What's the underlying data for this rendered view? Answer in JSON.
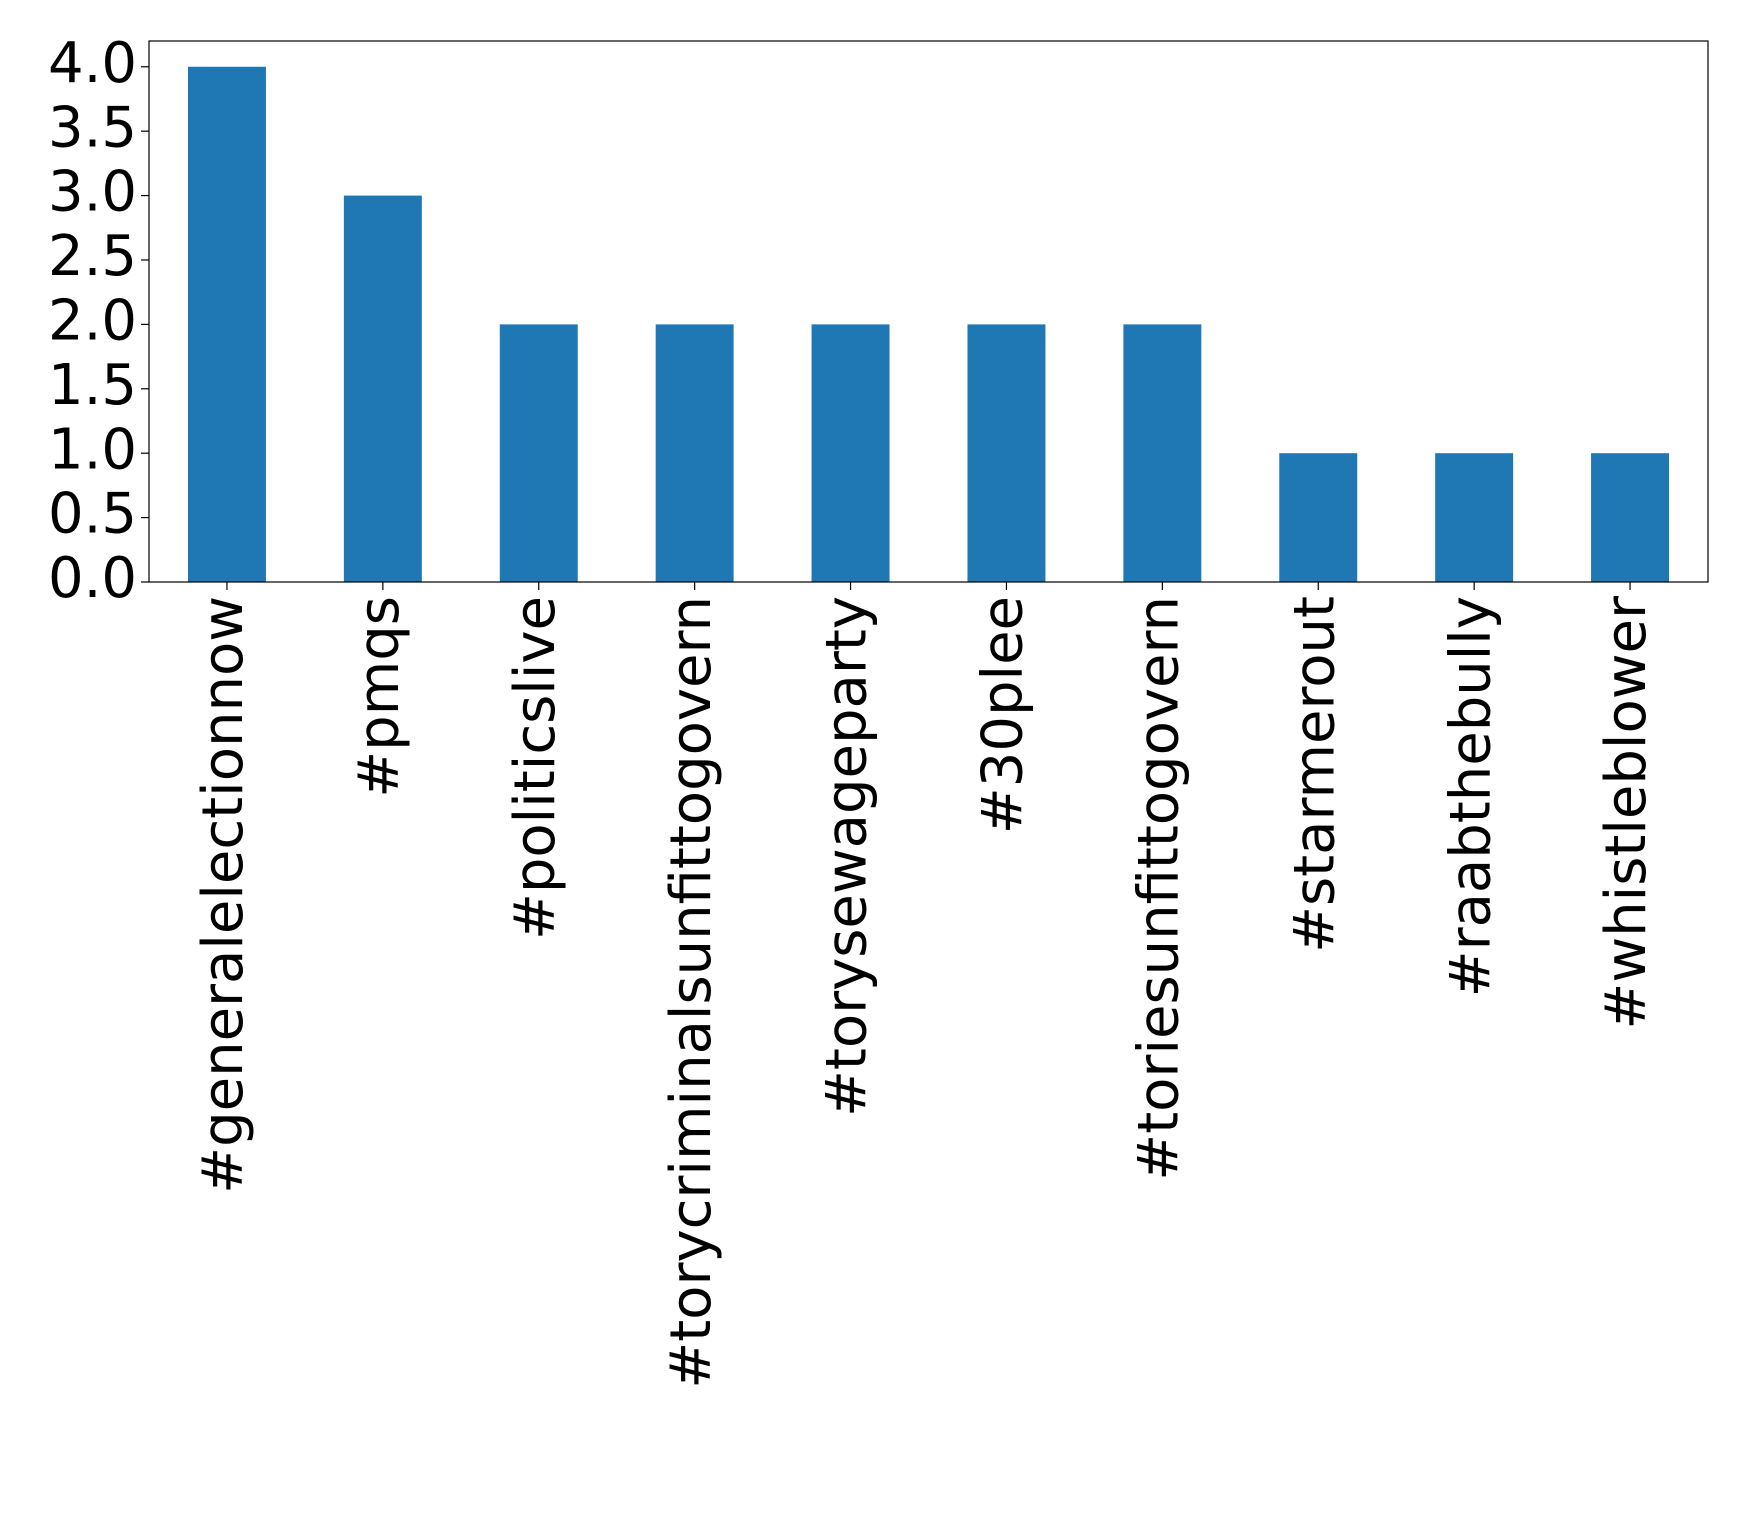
{
  "chart_data": {
    "type": "bar",
    "categories": [
      "#generalelectionnow",
      "#pmqs",
      "#politicslive",
      "#torycriminalsunfittogovern",
      "#torysewageparty",
      "#30plee",
      "#toriesunfittogovern",
      "#starmerout",
      "#raabthebully",
      "#whistleblower"
    ],
    "values": [
      4,
      3,
      2,
      2,
      2,
      2,
      2,
      1,
      1,
      1
    ],
    "color": "#1f77b4",
    "ylim": [
      0,
      4.2
    ],
    "yticks": [
      {
        "value": 0,
        "label": "0.0"
      },
      0.5,
      {
        "value": 1,
        "label": "1.0"
      },
      1.5,
      {
        "value": 2,
        "label": "2.0"
      },
      2.5,
      {
        "value": 3,
        "label": "3.0"
      },
      3.5,
      {
        "value": 4,
        "label": "4.0"
      }
    ],
    "grid": false
  }
}
